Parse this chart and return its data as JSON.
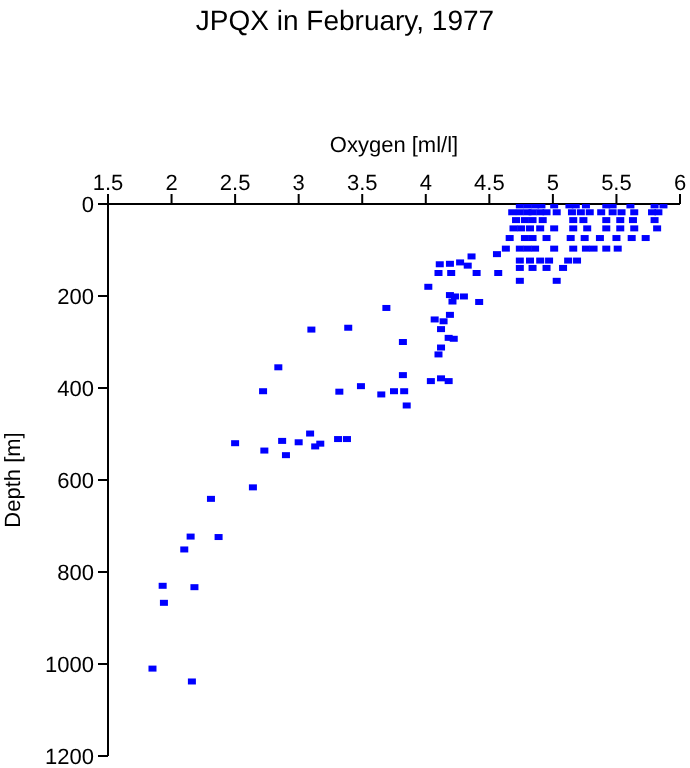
{
  "chart_data": {
    "type": "scatter",
    "title": "JPQX in February, 1977",
    "xlabel": "Oxygen [ml/l]",
    "ylabel": "Depth [m]",
    "xlim": [
      1.5,
      6
    ],
    "xticks": [
      1.5,
      2,
      2.5,
      3,
      3.5,
      4,
      4.5,
      5,
      5.5,
      6
    ],
    "ylim": [
      1200,
      0
    ],
    "yticks": [
      0,
      200,
      400,
      600,
      800,
      1000,
      1200
    ],
    "grid": false,
    "legend": false,
    "marker": "square",
    "series": [
      {
        "color": "#0000ff",
        "x": [
          4.74,
          4.8,
          4.86,
          4.91,
          5.01,
          5.13,
          5.18,
          5.26,
          5.42,
          5.47,
          5.61,
          5.8,
          5.87,
          4.68,
          4.74,
          4.8,
          4.84,
          4.9,
          4.95,
          5.03,
          5.15,
          5.22,
          5.29,
          5.38,
          5.47,
          5.54,
          5.64,
          5.78,
          5.83,
          4.71,
          4.78,
          4.84,
          4.92,
          5.16,
          5.24,
          5.42,
          5.53,
          5.63,
          5.8,
          4.69,
          4.75,
          4.82,
          4.9,
          5.01,
          5.16,
          5.27,
          5.42,
          5.53,
          5.64,
          5.82,
          4.66,
          4.78,
          4.84,
          4.95,
          5.14,
          5.25,
          5.37,
          5.5,
          5.62,
          5.73,
          4.63,
          4.74,
          4.8,
          4.86,
          5.01,
          5.16,
          5.26,
          5.32,
          5.42,
          5.51,
          4.74,
          4.82,
          4.9,
          4.97,
          5.12,
          5.19,
          4.74,
          4.84,
          4.95,
          5.08,
          4.74,
          5.03,
          3.1,
          3.39,
          3.69,
          3.82,
          3.82,
          2.84,
          4.02,
          4.11,
          4.19,
          4.27,
          4.36,
          4.33,
          4.1,
          4.2,
          4.4,
          4.19,
          4.23,
          4.3,
          4.21,
          4.42,
          4.19,
          4.07,
          4.14,
          4.12,
          4.18,
          4.22,
          4.12,
          4.1,
          4.56,
          4.57,
          2.72,
          3.32,
          3.49,
          3.65,
          3.75,
          3.83,
          3.85,
          4.04,
          4.12,
          4.18,
          2.5,
          2.73,
          2.87,
          2.9,
          3.0,
          3.09,
          3.13,
          3.17,
          3.31,
          3.38,
          2.64,
          2.31,
          2.15,
          2.37,
          2.1,
          1.93,
          1.94,
          2.18,
          1.85,
          2.16
        ],
        "values": [
          3,
          3,
          3,
          3,
          3,
          3,
          3,
          3,
          3,
          3,
          3,
          3,
          3,
          18,
          18,
          18,
          18,
          18,
          18,
          18,
          18,
          18,
          18,
          18,
          18,
          18,
          18,
          18,
          18,
          35,
          35,
          35,
          35,
          35,
          35,
          35,
          35,
          35,
          35,
          53,
          53,
          53,
          53,
          53,
          53,
          53,
          53,
          53,
          53,
          53,
          74,
          74,
          74,
          74,
          74,
          74,
          74,
          74,
          74,
          74,
          97,
          97,
          97,
          97,
          97,
          97,
          97,
          97,
          97,
          97,
          123,
          123,
          123,
          123,
          123,
          123,
          139,
          139,
          139,
          139,
          167,
          167,
          273,
          269,
          226,
          300,
          372,
          355,
          180,
          131,
          130,
          127,
          114,
          134,
          150,
          150,
          150,
          198,
          201,
          201,
          212,
          213,
          241,
          251,
          255,
          272,
          291,
          293,
          312,
          327,
          109,
          150,
          407,
          408,
          396,
          414,
          407,
          407,
          438,
          385,
          379,
          385,
          520,
          536,
          515,
          546,
          518,
          499,
          527,
          521,
          511,
          511,
          616,
          641,
          723,
          724,
          751,
          830,
          867,
          833,
          1010,
          1038
        ]
      }
    ]
  }
}
